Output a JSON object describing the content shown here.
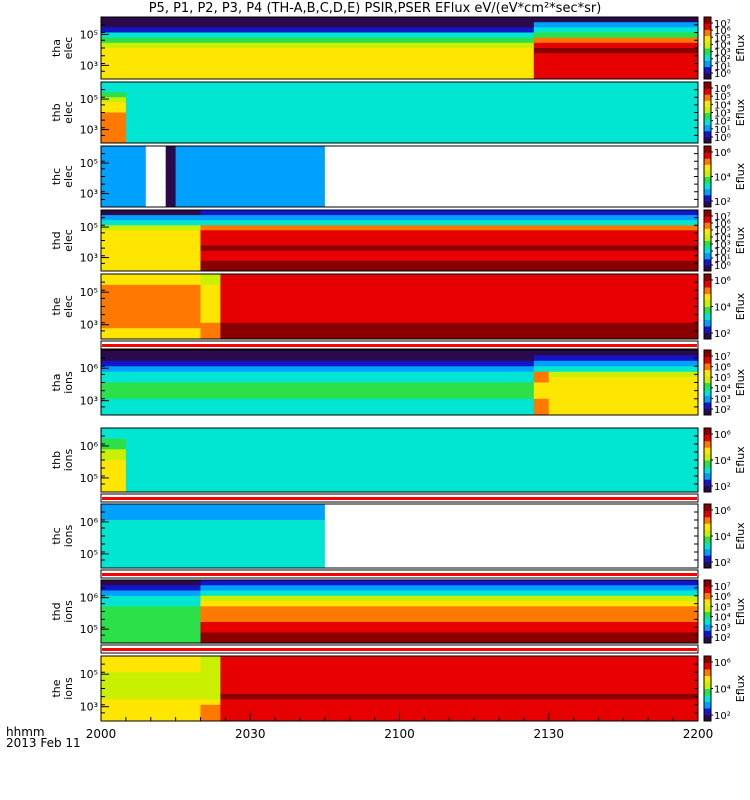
{
  "title": "P5, P1, P2, P3, P4 (TH-A,B,C,D,E) PSIR,PSER EFlux eV/(eV*cm²*sec*sr)",
  "x_axis": {
    "unit_label": "hhmm",
    "date_label": "2013 Feb 11",
    "tick_labels": [
      "2000",
      "2030",
      "2100",
      "2130",
      "2200"
    ]
  },
  "colorbar_label": "Eflux",
  "colors": {
    "palette": [
      "#2a0a4a",
      "#1414c8",
      "#00a0ff",
      "#00e6d2",
      "#2ce04a",
      "#c8f000",
      "#ffe600",
      "#ff7800",
      "#e60000",
      "#8a0000"
    ],
    "missing": "#ffffff",
    "flag_red": "#ff0000"
  },
  "chart_data": {
    "type": "heatmap",
    "x_range": [
      "2000",
      "2200"
    ],
    "panels": [
      {
        "id": "tha-elec",
        "ylabel": [
          "tha",
          "elec"
        ],
        "yticks": [
          "10⁵",
          "10³"
        ],
        "cticks": [
          "10⁷",
          "10⁶",
          "10⁵",
          "10⁴",
          "10³",
          "10²",
          "10¹",
          "10⁰"
        ],
        "clabel": "Eflux",
        "bands": [
          {
            "until_min": 87,
            "rows": [
              0,
              0,
              1,
              3,
              4,
              5,
              6,
              6,
              6,
              6,
              6,
              6
            ]
          },
          {
            "until_min": 120,
            "rows": [
              0,
              2,
              3,
              4,
              7,
              8,
              9,
              8,
              8,
              8,
              8,
              8
            ]
          }
        ]
      },
      {
        "id": "thb-elec",
        "ylabel": [
          "thb",
          "elec"
        ],
        "yticks": [
          "10⁵",
          "10³"
        ],
        "cticks": [
          "10⁶",
          "10⁵",
          "10⁴",
          "10³",
          "10²",
          "10¹",
          "10⁰"
        ],
        "clabel": "Eflux",
        "bands": [
          {
            "until_min": 5,
            "rows": [
              3,
              3,
              4,
              5,
              6,
              6,
              7,
              7,
              7,
              7,
              7,
              7
            ]
          },
          {
            "until_min": 120,
            "rows": [
              3,
              3,
              3,
              3,
              3,
              3,
              3,
              3,
              3,
              3,
              3,
              3
            ]
          }
        ]
      },
      {
        "id": "thc-elec",
        "ylabel": [
          "thc",
          "elec"
        ],
        "yticks": [
          "10⁵",
          "10³"
        ],
        "cticks": [
          "10⁶",
          "10⁴",
          "10²"
        ],
        "clabel": "Eflux",
        "bands": [
          {
            "until_min": 9,
            "rows": [
              2,
              2,
              2,
              2,
              2,
              2,
              2,
              2,
              2,
              2,
              2,
              2
            ]
          },
          {
            "until_min": 13,
            "rows": [
              -1,
              -1,
              -1,
              -1,
              -1,
              -1,
              -1,
              -1,
              -1,
              -1,
              -1,
              -1
            ]
          },
          {
            "until_min": 15,
            "rows": [
              0,
              0,
              0,
              0,
              0,
              0,
              0,
              0,
              0,
              0,
              0,
              0
            ]
          },
          {
            "until_min": 45,
            "rows": [
              2,
              2,
              2,
              2,
              2,
              2,
              2,
              2,
              2,
              2,
              2,
              2
            ]
          },
          {
            "until_min": 120,
            "rows": [
              -1,
              -1,
              -1,
              -1,
              -1,
              -1,
              -1,
              -1,
              -1,
              -1,
              -1,
              -1
            ]
          }
        ]
      },
      {
        "id": "thd-elec",
        "ylabel": [
          "thd",
          "elec"
        ],
        "yticks": [
          "10⁵",
          "10³"
        ],
        "cticks": [
          "10⁷",
          "10⁶",
          "10⁵",
          "10⁴",
          "10³",
          "10²",
          "10¹",
          "10⁰"
        ],
        "clabel": "Eflux",
        "bands": [
          {
            "until_min": 20,
            "rows": [
              0,
              2,
              3,
              5,
              6,
              6,
              6,
              6,
              6,
              6,
              6,
              6
            ]
          },
          {
            "until_min": 120,
            "rows": [
              1,
              2,
              3,
              7,
              8,
              8,
              8,
              9,
              8,
              8,
              9,
              9
            ]
          }
        ]
      },
      {
        "id": "the-elec",
        "ylabel": [
          "the",
          "elec"
        ],
        "yticks": [
          "10⁵",
          "10³"
        ],
        "cticks": [
          "10⁶",
          "10⁴",
          "10²"
        ],
        "clabel": "Eflux",
        "flag_below": true,
        "bands": [
          {
            "until_min": 20,
            "rows": [
              6,
              6,
              7,
              7,
              7,
              7,
              7,
              7,
              7,
              7,
              6,
              6
            ]
          },
          {
            "until_min": 24,
            "rows": [
              5,
              5,
              6,
              6,
              6,
              6,
              6,
              6,
              6,
              7,
              7,
              7
            ]
          },
          {
            "until_min": 120,
            "rows": [
              8,
              8,
              8,
              8,
              8,
              8,
              8,
              8,
              8,
              9,
              9,
              9
            ]
          }
        ]
      },
      {
        "id": "tha-ions",
        "ylabel": [
          "tha",
          "ions"
        ],
        "yticks": [
          "10⁶",
          "10³"
        ],
        "cticks": [
          "10⁷",
          "10⁶",
          "10⁵",
          "10⁴",
          "10³",
          "10²"
        ],
        "clabel": "Eflux",
        "bands": [
          {
            "until_min": 87,
            "rows": [
              0,
              0,
              1,
              2,
              3,
              3,
              4,
              4,
              4,
              3,
              3,
              3
            ]
          },
          {
            "until_min": 90,
            "rows": [
              0,
              1,
              2,
              3,
              7,
              7,
              6,
              6,
              6,
              7,
              7,
              7
            ]
          },
          {
            "until_min": 120,
            "rows": [
              0,
              1,
              2,
              3,
              5,
              6,
              6,
              6,
              6,
              6,
              6,
              6
            ]
          }
        ]
      },
      {
        "id": "thb-ions",
        "ylabel": [
          "thb",
          "ions"
        ],
        "yticks": [
          "10⁶",
          "10⁵"
        ],
        "cticks": [
          "10⁶",
          "10⁴",
          "10²"
        ],
        "clabel": "Eflux",
        "flag_below": true,
        "bands": [
          {
            "until_min": 5,
            "rows": [
              3,
              3,
              4,
              4,
              5,
              5,
              6,
              6,
              6,
              6,
              6,
              6
            ]
          },
          {
            "until_min": 120,
            "rows": [
              3,
              3,
              3,
              3,
              3,
              3,
              3,
              3,
              3,
              3,
              3,
              3
            ]
          }
        ]
      },
      {
        "id": "thc-ions",
        "ylabel": [
          "thc",
          "ions"
        ],
        "yticks": [
          "10⁶",
          "10⁵"
        ],
        "cticks": [
          "10⁶",
          "10⁴",
          "10²"
        ],
        "clabel": "Eflux",
        "flag_below": true,
        "bands": [
          {
            "until_min": 45,
            "rows": [
              2,
              2,
              2,
              3,
              3,
              3,
              3,
              3,
              3,
              3,
              3,
              3
            ]
          },
          {
            "until_min": 120,
            "rows": [
              -1,
              -1,
              -1,
              -1,
              -1,
              -1,
              -1,
              -1,
              -1,
              -1,
              -1,
              -1
            ]
          }
        ]
      },
      {
        "id": "thd-ions",
        "ylabel": [
          "thd",
          "ions"
        ],
        "yticks": [
          "10⁶",
          "10⁵"
        ],
        "cticks": [
          "10⁷",
          "10⁶",
          "10⁵",
          "10⁴",
          "10³",
          "10²"
        ],
        "clabel": "Eflux",
        "flag_below": true,
        "bands": [
          {
            "until_min": 20,
            "rows": [
              0,
              1,
              2,
              3,
              3,
              4,
              4,
              4,
              4,
              4,
              4,
              4
            ]
          },
          {
            "until_min": 120,
            "rows": [
              1,
              2,
              3,
              5,
              6,
              7,
              7,
              7,
              8,
              8,
              9,
              9
            ]
          }
        ]
      },
      {
        "id": "the-ions",
        "ylabel": [
          "the",
          "ions"
        ],
        "yticks": [
          "10⁵",
          "10³"
        ],
        "cticks": [
          "10⁶",
          "10⁴",
          "10²"
        ],
        "clabel": "Eflux",
        "bands": [
          {
            "until_min": 20,
            "rows": [
              6,
              6,
              6,
              5,
              5,
              5,
              5,
              5,
              6,
              6,
              6,
              6
            ]
          },
          {
            "until_min": 24,
            "rows": [
              5,
              5,
              5,
              5,
              5,
              5,
              5,
              5,
              6,
              7,
              7,
              7
            ]
          },
          {
            "until_min": 120,
            "rows": [
              8,
              8,
              8,
              8,
              8,
              8,
              8,
              9,
              8,
              8,
              8,
              8
            ]
          }
        ]
      }
    ]
  }
}
